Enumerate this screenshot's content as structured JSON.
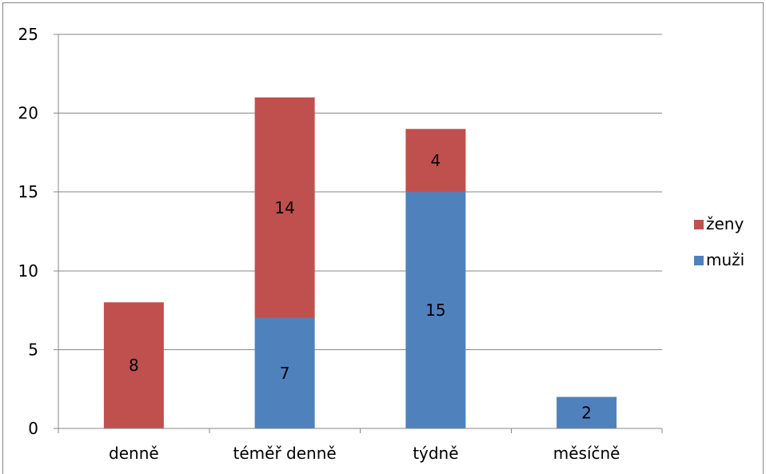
{
  "chart_data": {
    "type": "bar",
    "stacked": true,
    "title": "",
    "xlabel": "",
    "ylabel": "",
    "categories": [
      "denně",
      "téměř denně",
      "týdně",
      "měsíčně"
    ],
    "series": [
      {
        "name": "muži",
        "values": [
          0,
          7,
          15,
          2
        ],
        "color": "#4f81bd"
      },
      {
        "name": "ženy",
        "values": [
          8,
          14,
          4,
          0
        ],
        "color": "#c0504d"
      }
    ],
    "ylim": [
      0,
      25
    ],
    "yticks": [
      0,
      5,
      10,
      15,
      20,
      25
    ],
    "grid": true,
    "data_labels": true,
    "legend": {
      "position": "right",
      "entries": [
        "ženy",
        "muži"
      ]
    }
  }
}
